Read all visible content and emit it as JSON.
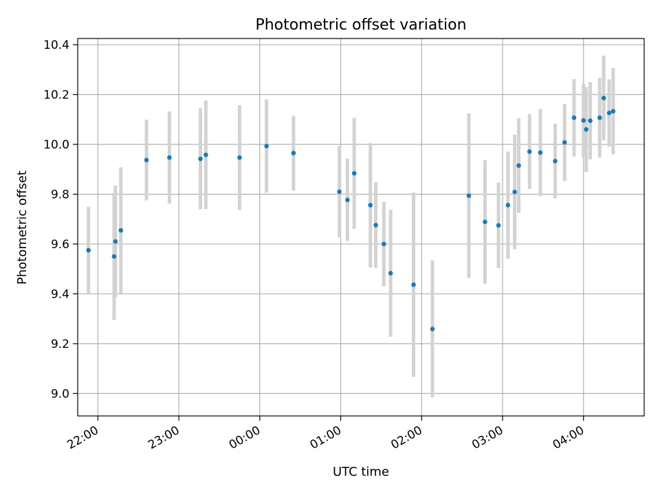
{
  "chart_data": {
    "type": "scatter",
    "title": "Photometric offset variation",
    "xlabel": "UTC time",
    "ylabel": "Photometric offset",
    "x_is_time": true,
    "xlim": [
      "21:45",
      "04:45"
    ],
    "ylim": [
      8.91,
      10.425
    ],
    "grid": true,
    "marker_color": "#1f77b4",
    "errorbar_color": "#d3d3d3",
    "xticks": [
      "22:00",
      "23:00",
      "00:00",
      "01:00",
      "02:00",
      "03:00",
      "04:00"
    ],
    "yticks": [
      "9.0",
      "9.2",
      "9.4",
      "9.6",
      "9.8",
      "10.0",
      "10.2",
      "10.4"
    ],
    "points": [
      {
        "t": "21:53",
        "y": 9.575,
        "err": 0.175
      },
      {
        "t": "22:12",
        "y": 9.55,
        "err": 0.255
      },
      {
        "t": "22:13",
        "y": 9.61,
        "err": 0.225
      },
      {
        "t": "22:17",
        "y": 9.655,
        "err": 0.253
      },
      {
        "t": "22:36",
        "y": 9.937,
        "err": 0.162
      },
      {
        "t": "22:53",
        "y": 9.947,
        "err": 0.185
      },
      {
        "t": "23:16",
        "y": 9.942,
        "err": 0.203
      },
      {
        "t": "23:20",
        "y": 9.958,
        "err": 0.218
      },
      {
        "t": "23:45",
        "y": 9.947,
        "err": 0.21
      },
      {
        "t": "00:05",
        "y": 9.993,
        "err": 0.187
      },
      {
        "t": "00:25",
        "y": 9.965,
        "err": 0.15
      },
      {
        "t": "00:59",
        "y": 9.81,
        "err": 0.183
      },
      {
        "t": "01:05",
        "y": 9.777,
        "err": 0.165
      },
      {
        "t": "01:10",
        "y": 9.884,
        "err": 0.223
      },
      {
        "t": "01:22",
        "y": 9.756,
        "err": 0.25
      },
      {
        "t": "01:26",
        "y": 9.676,
        "err": 0.172
      },
      {
        "t": "01:32",
        "y": 9.6,
        "err": 0.17
      },
      {
        "t": "01:37",
        "y": 9.483,
        "err": 0.255
      },
      {
        "t": "01:54",
        "y": 9.437,
        "err": 0.37
      },
      {
        "t": "02:08",
        "y": 9.259,
        "err": 0.275
      },
      {
        "t": "02:35",
        "y": 9.794,
        "err": 0.33
      },
      {
        "t": "02:47",
        "y": 9.689,
        "err": 0.248
      },
      {
        "t": "02:57",
        "y": 9.675,
        "err": 0.172
      },
      {
        "t": "03:04",
        "y": 9.756,
        "err": 0.215
      },
      {
        "t": "03:09",
        "y": 9.809,
        "err": 0.23
      },
      {
        "t": "03:12",
        "y": 9.915,
        "err": 0.19
      },
      {
        "t": "03:20",
        "y": 9.971,
        "err": 0.15
      },
      {
        "t": "03:28",
        "y": 9.967,
        "err": 0.175
      },
      {
        "t": "03:39",
        "y": 9.933,
        "err": 0.15
      },
      {
        "t": "03:46",
        "y": 10.008,
        "err": 0.155
      },
      {
        "t": "03:53",
        "y": 10.107,
        "err": 0.155
      },
      {
        "t": "04:00",
        "y": 10.096,
        "err": 0.147
      },
      {
        "t": "04:02",
        "y": 10.06,
        "err": 0.17
      },
      {
        "t": "04:05",
        "y": 10.095,
        "err": 0.155
      },
      {
        "t": "04:12",
        "y": 10.107,
        "err": 0.16
      },
      {
        "t": "04:15",
        "y": 10.186,
        "err": 0.17
      },
      {
        "t": "04:19",
        "y": 10.126,
        "err": 0.135
      },
      {
        "t": "04:22",
        "y": 10.133,
        "err": 0.173
      }
    ]
  }
}
